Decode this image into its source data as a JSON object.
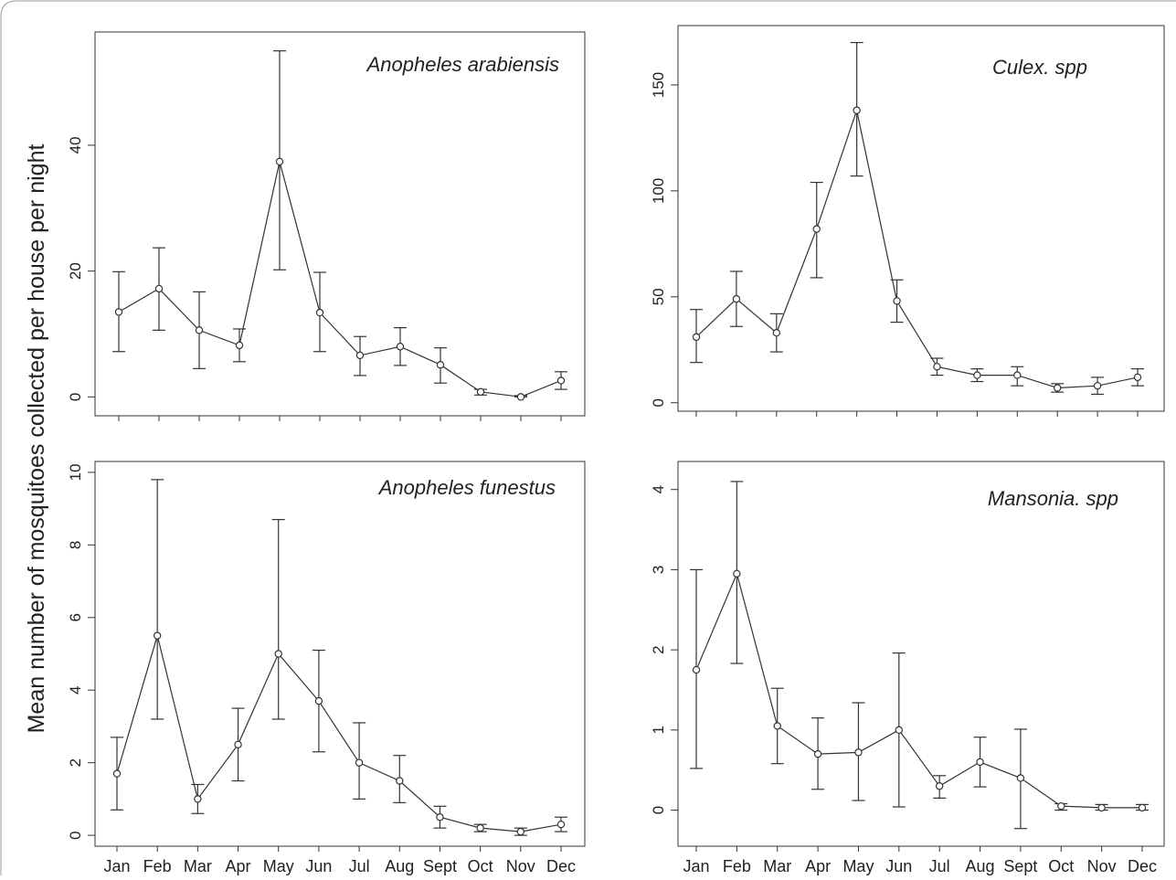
{
  "figure": {
    "ylabel": "Mean number of mosquitoes collected per house per night"
  },
  "months": [
    "Jan",
    "Feb",
    "Mar",
    "Apr",
    "May",
    "Jun",
    "Jul",
    "Aug",
    "Sept",
    "Oct",
    "Nov",
    "Dec"
  ],
  "chart_data": [
    {
      "type": "line",
      "title": "Anopheles  arabiensis",
      "categories": [
        "Jan",
        "Feb",
        "Mar",
        "Apr",
        "May",
        "Jun",
        "Jul",
        "Aug",
        "Sept",
        "Oct",
        "Nov",
        "Dec"
      ],
      "values": [
        13.5,
        17.2,
        10.6,
        8.2,
        37.4,
        13.4,
        6.6,
        8.0,
        5.1,
        0.8,
        0.0,
        2.6
      ],
      "err_low": [
        7.2,
        10.6,
        4.5,
        5.6,
        20.2,
        7.2,
        3.4,
        5.0,
        2.2,
        0.3,
        0.0,
        1.2
      ],
      "err_high": [
        19.9,
        23.7,
        16.7,
        10.8,
        55.0,
        19.8,
        9.6,
        11.0,
        7.8,
        1.2,
        0.2,
        4.0
      ],
      "yticks": [
        0,
        20,
        40
      ],
      "ylim": [
        -3,
        58
      ]
    },
    {
      "type": "line",
      "title": "Culex. spp",
      "categories": [
        "Jan",
        "Feb",
        "Mar",
        "Apr",
        "May",
        "Jun",
        "Jul",
        "Aug",
        "Sept",
        "Oct",
        "Nov",
        "Dec"
      ],
      "values": [
        31,
        49,
        33,
        82,
        138,
        48,
        17,
        13,
        13,
        7,
        8,
        12
      ],
      "err_low": [
        19,
        36,
        24,
        59,
        107,
        38,
        13,
        10,
        8,
        5,
        4,
        8
      ],
      "err_high": [
        44,
        62,
        42,
        104,
        170,
        58,
        21,
        16,
        17,
        9,
        12,
        16
      ],
      "yticks": [
        0,
        50,
        100,
        150
      ],
      "ylim": [
        -4,
        178
      ]
    },
    {
      "type": "line",
      "title": "Anopheles  funestus",
      "categories": [
        "Jan",
        "Feb",
        "Mar",
        "Apr",
        "May",
        "Jun",
        "Jul",
        "Aug",
        "Sept",
        "Oct",
        "Nov",
        "Dec"
      ],
      "values": [
        1.7,
        5.5,
        1.0,
        2.5,
        5.0,
        3.7,
        2.0,
        1.5,
        0.5,
        0.2,
        0.1,
        0.3
      ],
      "err_low": [
        0.7,
        3.2,
        0.6,
        1.5,
        3.2,
        2.3,
        1.0,
        0.9,
        0.2,
        0.1,
        0.0,
        0.1
      ],
      "err_high": [
        2.7,
        9.8,
        1.4,
        3.5,
        8.7,
        5.1,
        3.1,
        2.2,
        0.8,
        0.3,
        0.2,
        0.5
      ],
      "yticks": [
        0,
        2,
        4,
        6,
        8,
        10
      ],
      "ylim": [
        -0.3,
        10.3
      ]
    },
    {
      "type": "line",
      "title": "Mansonia. spp",
      "categories": [
        "Jan",
        "Feb",
        "Mar",
        "Apr",
        "May",
        "Jun",
        "Jul",
        "Aug",
        "Sept",
        "Oct",
        "Nov",
        "Dec"
      ],
      "values": [
        1.75,
        2.95,
        1.05,
        0.7,
        0.72,
        1.0,
        0.3,
        0.6,
        0.4,
        0.05,
        0.03,
        0.03
      ],
      "err_low": [
        0.52,
        1.83,
        0.58,
        0.26,
        0.12,
        0.04,
        0.15,
        0.29,
        -0.23,
        0.0,
        0.0,
        0.0
      ],
      "err_high": [
        3.0,
        4.1,
        1.52,
        1.15,
        1.34,
        1.96,
        0.43,
        0.91,
        1.01,
        0.08,
        0.07,
        0.07
      ],
      "yticks": [
        0,
        1,
        2,
        3,
        4
      ],
      "ylim": [
        -0.45,
        4.35
      ]
    }
  ]
}
